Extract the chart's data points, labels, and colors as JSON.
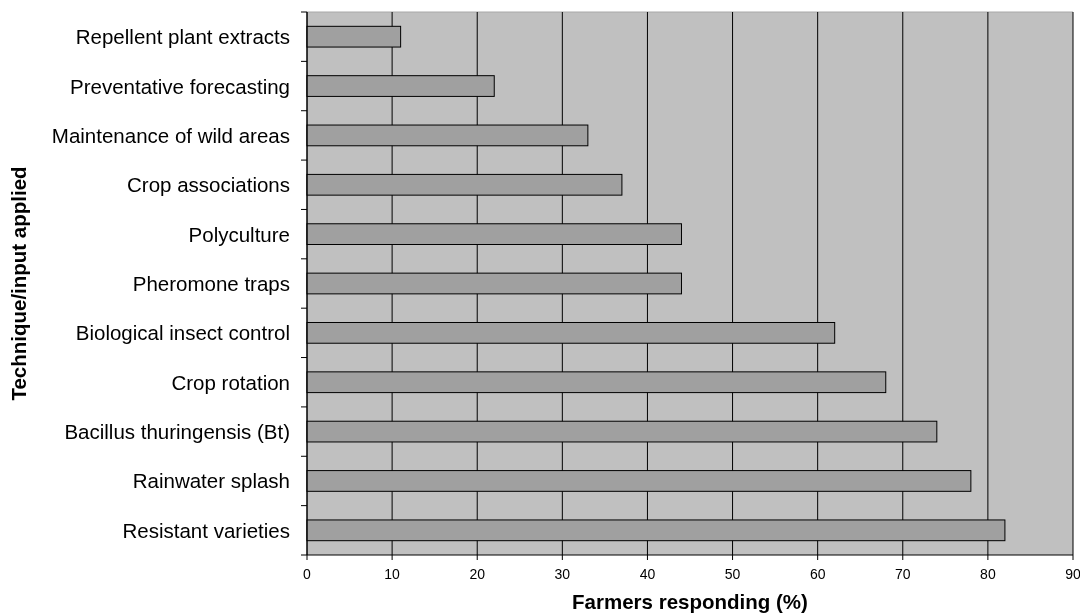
{
  "chart_data": {
    "type": "bar",
    "orientation": "horizontal",
    "categories": [
      "Repellent plant extracts",
      "Preventative forecasting",
      "Maintenance of wild areas",
      "Crop associations",
      "Polyculture",
      "Pheromone traps",
      "Biological insect control",
      "Crop rotation",
      "Bacillus thuringensis (Bt)",
      "Rainwater splash",
      "Resistant varieties"
    ],
    "values": [
      11,
      22,
      33,
      37,
      44,
      44,
      62,
      68,
      74,
      78,
      82
    ],
    "color": "#a0a0a0",
    "xlim": [
      0,
      90
    ],
    "xticks": [
      0,
      10,
      20,
      30,
      40,
      50,
      60,
      70,
      80,
      90
    ],
    "xlabel": "Farmers responding (%)",
    "ylabel": "Technique/input applied",
    "grid": "x"
  }
}
